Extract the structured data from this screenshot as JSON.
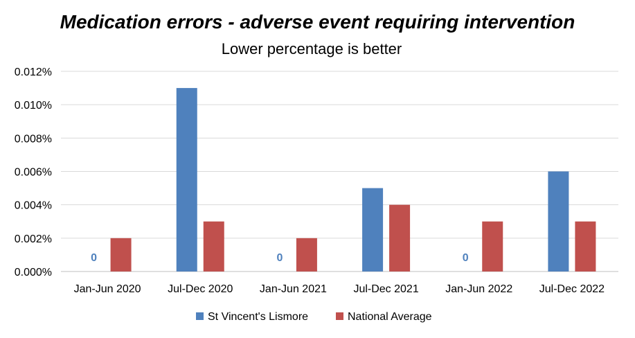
{
  "chart_data": {
    "type": "bar",
    "title": "Medication errors - adverse event requiring intervention",
    "subtitle": "Lower percentage is better",
    "categories": [
      "Jan-Jun 2020",
      "Jul-Dec 2020",
      "Jan-Jun 2021",
      "Jul-Dec 2021",
      "Jan-Jun 2022",
      "Jul-Dec 2022"
    ],
    "series": [
      {
        "name": "St Vincent's Lismore",
        "color": "#4f81bd",
        "values": [
          0,
          0.011,
          0,
          0.005,
          0,
          0.006
        ]
      },
      {
        "name": "National Average",
        "color": "#c0504d",
        "values": [
          0.002,
          0.003,
          0.002,
          0.004,
          0.003,
          0.003
        ]
      }
    ],
    "zero_labels": [
      {
        "series": 0,
        "category": 0,
        "text": "0"
      },
      {
        "series": 0,
        "category": 2,
        "text": "0"
      },
      {
        "series": 0,
        "category": 4,
        "text": "0"
      }
    ],
    "yticks": [
      "0.000%",
      "0.002%",
      "0.004%",
      "0.006%",
      "0.008%",
      "0.010%",
      "0.012%"
    ],
    "ylim": [
      0,
      0.012
    ],
    "ystep": 0.002,
    "grid": true,
    "legend_position": "bottom",
    "xlabel": "",
    "ylabel": ""
  }
}
